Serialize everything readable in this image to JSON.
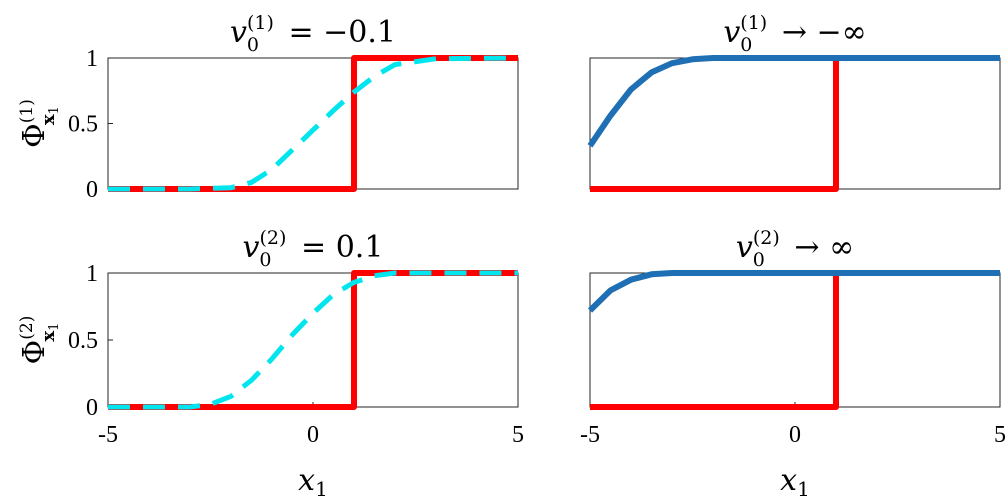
{
  "chart_data": [
    {
      "id": "top-left",
      "type": "line",
      "title": {
        "sym": "v",
        "sub": "0",
        "sup": "(1)",
        "rest": " = −0.1"
      },
      "ylabel": {
        "sym": "Φ",
        "sub": "x",
        "subsub": "1",
        "sup": "(1)"
      },
      "xlabel": "",
      "xlim": [
        -5,
        5
      ],
      "ylim": [
        0,
        1
      ],
      "yticks": [
        "0",
        "0.5",
        "1"
      ],
      "xticks": [],
      "grid": false,
      "series": [
        {
          "color": "#ff0000",
          "style": "solid",
          "x": [
            -5,
            1,
            1,
            5
          ],
          "y": [
            0,
            0,
            1,
            1
          ]
        },
        {
          "color": "#00e5ee",
          "style": "dashed",
          "x": [
            -5,
            -3,
            -2,
            -1.5,
            -1,
            -0.5,
            0,
            0.5,
            1,
            1.5,
            2,
            3,
            5
          ],
          "y": [
            0,
            0,
            0.01,
            0.05,
            0.15,
            0.3,
            0.45,
            0.6,
            0.74,
            0.86,
            0.95,
            0.995,
            1
          ]
        }
      ]
    },
    {
      "id": "top-right",
      "type": "line",
      "title": {
        "sym": "v",
        "sub": "0",
        "sup": "(1)",
        "rest": " → −∞"
      },
      "xlabel": "",
      "xlim": [
        -5,
        5
      ],
      "ylim": [
        0,
        1
      ],
      "yticks": [],
      "xticks": [],
      "grid": false,
      "series": [
        {
          "color": "#ff0000",
          "style": "solid",
          "x": [
            -5,
            1,
            1,
            5
          ],
          "y": [
            0,
            0,
            1,
            1
          ]
        },
        {
          "color": "#1f6fb5",
          "style": "solid",
          "x": [
            -5,
            -4.5,
            -4,
            -3.5,
            -3,
            -2.5,
            -2,
            -1.5,
            0,
            5
          ],
          "y": [
            0.33,
            0.56,
            0.76,
            0.89,
            0.96,
            0.99,
            1,
            1,
            1,
            1
          ]
        }
      ]
    },
    {
      "id": "bottom-left",
      "type": "line",
      "title": {
        "sym": "v",
        "sub": "0",
        "sup": "(2)",
        "rest": " = 0.1"
      },
      "ylabel": {
        "sym": "Φ",
        "sub": "x",
        "subsub": "1",
        "sup": "(2)"
      },
      "xlabel": "x1",
      "xlim": [
        -5,
        5
      ],
      "ylim": [
        0,
        1
      ],
      "yticks": [
        "0",
        "0.5",
        "1"
      ],
      "xticks": [
        "-5",
        "0",
        "5"
      ],
      "grid": false,
      "series": [
        {
          "color": "#ff0000",
          "style": "solid",
          "x": [
            -5,
            1,
            1,
            5
          ],
          "y": [
            0,
            0,
            1,
            1
          ]
        },
        {
          "color": "#00e5ee",
          "style": "dashed",
          "x": [
            -5,
            -3,
            -2.5,
            -2,
            -1.5,
            -1,
            -0.5,
            0,
            0.5,
            1,
            1.5,
            2,
            5
          ],
          "y": [
            0,
            0,
            0.02,
            0.08,
            0.2,
            0.36,
            0.54,
            0.7,
            0.84,
            0.93,
            0.98,
            1,
            1
          ]
        }
      ]
    },
    {
      "id": "bottom-right",
      "type": "line",
      "title": {
        "sym": "v",
        "sub": "0",
        "sup": "(2)",
        "rest": " → ∞"
      },
      "xlabel": "x1",
      "xlim": [
        -5,
        5
      ],
      "ylim": [
        0,
        1
      ],
      "yticks": [],
      "xticks": [
        "-5",
        "0",
        "5"
      ],
      "grid": false,
      "series": [
        {
          "color": "#ff0000",
          "style": "solid",
          "x": [
            -5,
            1,
            1,
            5
          ],
          "y": [
            0,
            0,
            1,
            1
          ]
        },
        {
          "color": "#1f6fb5",
          "style": "solid",
          "x": [
            -5,
            -4.5,
            -4,
            -3.5,
            -3,
            -2.5,
            0,
            5
          ],
          "y": [
            0.72,
            0.87,
            0.95,
            0.99,
            1,
            1,
            1,
            1
          ]
        }
      ]
    }
  ]
}
